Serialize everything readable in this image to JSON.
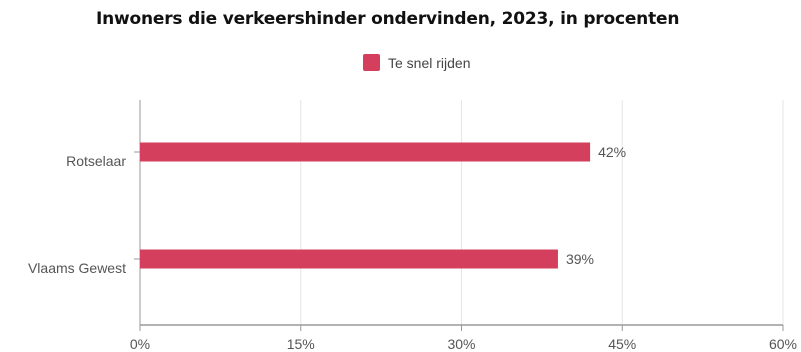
{
  "chart_data": {
    "type": "bar",
    "orientation": "horizontal",
    "title": "Inwoners die verkeershinder ondervinden, 2023, in procenten",
    "categories": [
      "Rotselaar",
      "Vlaams Gewest"
    ],
    "series": [
      {
        "name": "Te snel rijden",
        "values": [
          42,
          39
        ],
        "labels": [
          "42%",
          "39%"
        ]
      }
    ],
    "xlim": [
      0,
      60
    ],
    "xticks": [
      0,
      15,
      30,
      45,
      60
    ],
    "xtick_labels": [
      "0%",
      "15%",
      "30%",
      "45%",
      "60%"
    ],
    "grid": true,
    "legend": "top-center",
    "colors": {
      "bar": "#d43f5e",
      "grid": "#e6e6e6",
      "axis": "#999999"
    }
  }
}
